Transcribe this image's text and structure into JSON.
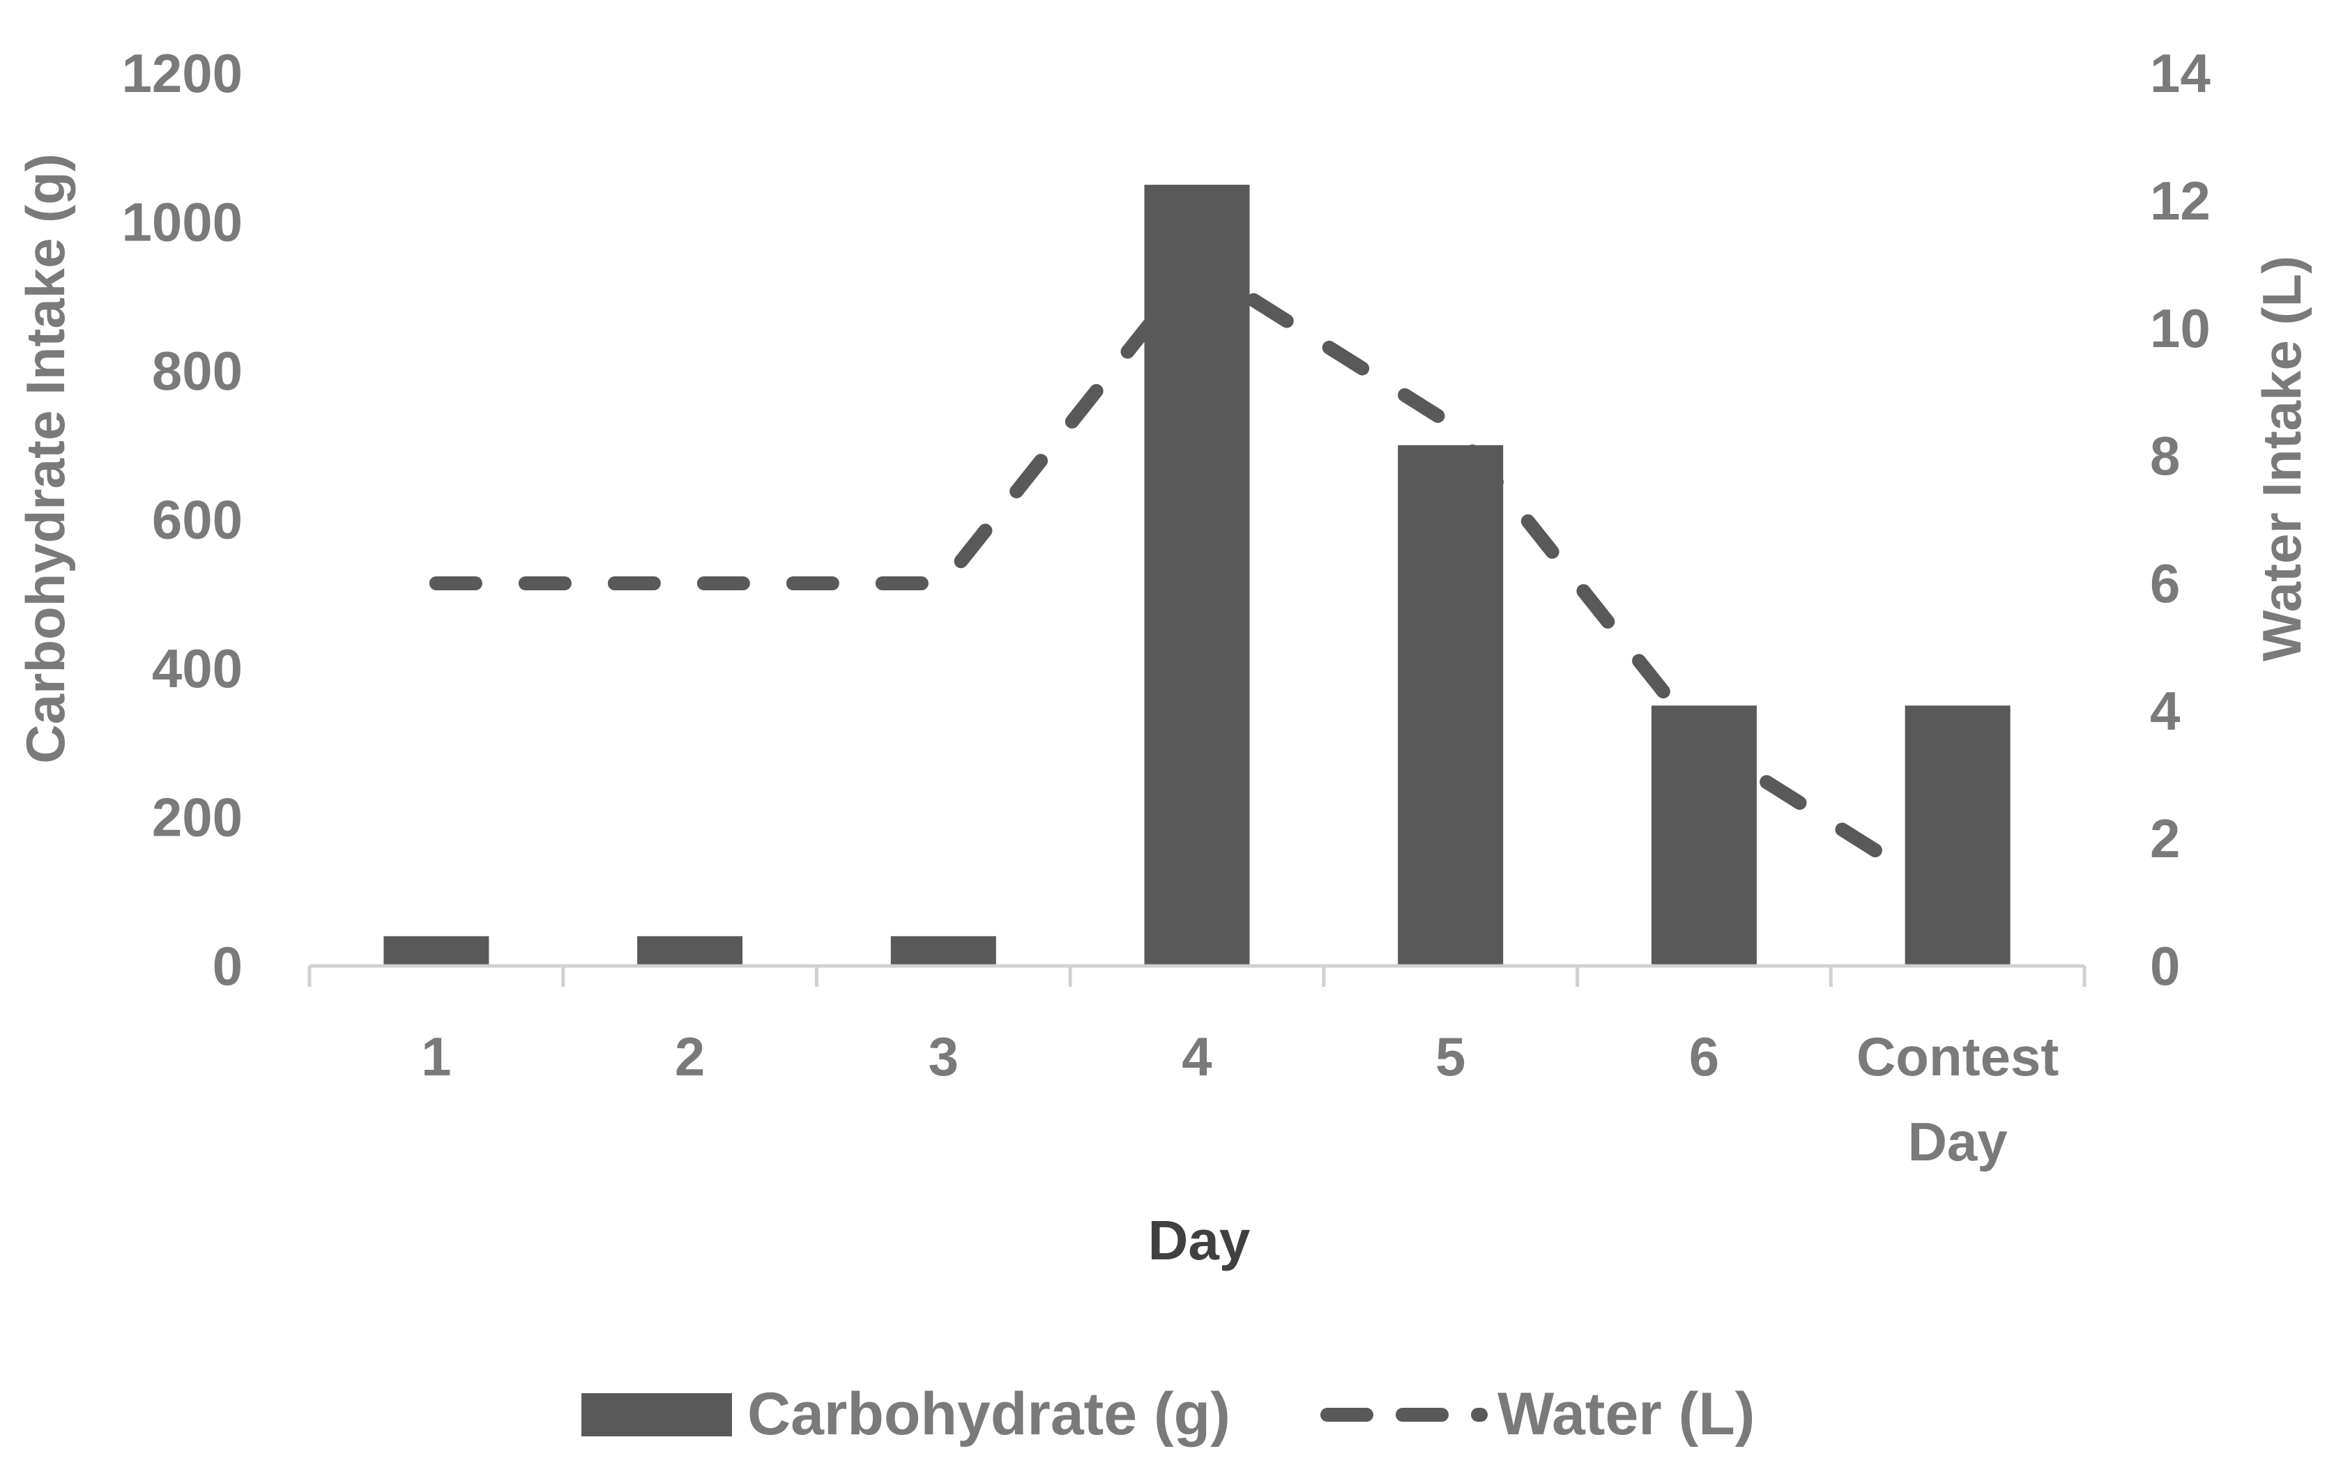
{
  "chart_data": {
    "type": "bar",
    "categories": [
      "1",
      "2",
      "3",
      "4",
      "5",
      "6",
      "Contest Day"
    ],
    "series": [
      {
        "name": "Carbohydrate (g)",
        "type": "bar",
        "axis": "left",
        "values": [
          40,
          40,
          40,
          1050,
          700,
          350,
          350
        ]
      },
      {
        "name": "Water (L)",
        "type": "line",
        "style": "dashed",
        "axis": "right",
        "values": [
          6,
          6,
          6,
          11,
          8.5,
          3.5,
          1
        ]
      }
    ],
    "xlabel": "Day",
    "ylabel": "Carbohydrate Intake (g)",
    "ylabel_right": "Water Intake (L)",
    "ylim": [
      0,
      1200
    ],
    "ylim_right": [
      0,
      14
    ],
    "yticks": [
      "0",
      "200",
      "400",
      "600",
      "800",
      "1000",
      "1200"
    ],
    "yticks_right": [
      "0",
      "2",
      "4",
      "6",
      "8",
      "10",
      "12",
      "14"
    ],
    "grid": false,
    "legend_position": "bottom",
    "colors": {
      "bar": "#595959",
      "line": "#595959",
      "axis": "#d0d0d0",
      "tick_text": "#7a7a7a"
    }
  }
}
